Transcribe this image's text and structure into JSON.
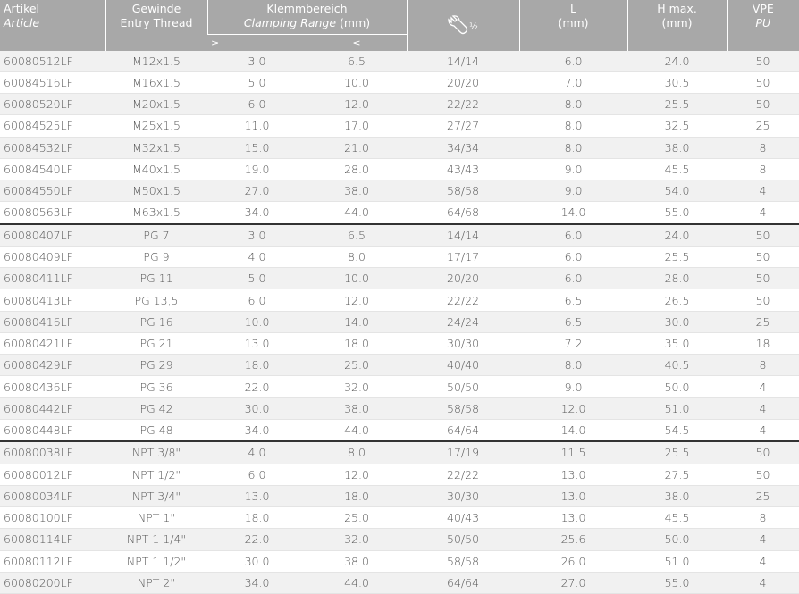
{
  "header": {
    "article": {
      "de": "Artikel",
      "en": "Article"
    },
    "thread": {
      "de": "Gewinde",
      "en": "Entry Thread"
    },
    "clamping": {
      "de": "Klemmbereich",
      "en": "Clamping Range",
      "unit": "(mm)",
      "min": "≥",
      "max": "≤"
    },
    "wrench": "½",
    "length": {
      "de": "L",
      "unit": "(mm)"
    },
    "height": {
      "de": "H max.",
      "unit": "(mm)"
    },
    "pu": {
      "de": "VPE",
      "en": "PU"
    }
  },
  "table": {
    "groups": [
      [
        [
          "60080512LF",
          "M12x1.5",
          "3.0",
          "6.5",
          "14/14",
          "6.0",
          "24.0",
          "50"
        ],
        [
          "60084516LF",
          "M16x1.5",
          "5.0",
          "10.0",
          "20/20",
          "7.0",
          "30.5",
          "50"
        ],
        [
          "60080520LF",
          "M20x1.5",
          "6.0",
          "12.0",
          "22/22",
          "8.0",
          "25.5",
          "50"
        ],
        [
          "60084525LF",
          "M25x1.5",
          "11.0",
          "17.0",
          "27/27",
          "8.0",
          "32.5",
          "25"
        ],
        [
          "60084532LF",
          "M32x1.5",
          "15.0",
          "21.0",
          "34/34",
          "8.0",
          "38.0",
          "8"
        ],
        [
          "60084540LF",
          "M40x1.5",
          "19.0",
          "28.0",
          "43/43",
          "9.0",
          "45.5",
          "8"
        ],
        [
          "60084550LF",
          "M50x1.5",
          "27.0",
          "38.0",
          "58/58",
          "9.0",
          "54.0",
          "4"
        ],
        [
          "60080563LF",
          "M63x1.5",
          "34.0",
          "44.0",
          "64/68",
          "14.0",
          "55.0",
          "4"
        ]
      ],
      [
        [
          "60080407LF",
          "PG 7",
          "3.0",
          "6.5",
          "14/14",
          "6.0",
          "24.0",
          "50"
        ],
        [
          "60080409LF",
          "PG 9",
          "4.0",
          "8.0",
          "17/17",
          "6.0",
          "25.5",
          "50"
        ],
        [
          "60080411LF",
          "PG 11",
          "5.0",
          "10.0",
          "20/20",
          "6.0",
          "28.0",
          "50"
        ],
        [
          "60080413LF",
          "PG 13,5",
          "6.0",
          "12.0",
          "22/22",
          "6.5",
          "26.5",
          "50"
        ],
        [
          "60080416LF",
          "PG 16",
          "10.0",
          "14.0",
          "24/24",
          "6.5",
          "30.0",
          "25"
        ],
        [
          "60080421LF",
          "PG 21",
          "13.0",
          "18.0",
          "30/30",
          "7.2",
          "35.0",
          "18"
        ],
        [
          "60080429LF",
          "PG 29",
          "18.0",
          "25.0",
          "40/40",
          "8.0",
          "40.5",
          "8"
        ],
        [
          "60080436LF",
          "PG 36",
          "22.0",
          "32.0",
          "50/50",
          "9.0",
          "50.0",
          "4"
        ],
        [
          "60080442LF",
          "PG 42",
          "30.0",
          "38.0",
          "58/58",
          "12.0",
          "51.0",
          "4"
        ],
        [
          "60080448LF",
          "PG 48",
          "34.0",
          "44.0",
          "64/64",
          "14.0",
          "54.5",
          "4"
        ]
      ],
      [
        [
          "60080038LF",
          "NPT 3/8\"",
          "4.0",
          "8.0",
          "17/19",
          "11.5",
          "25.5",
          "50"
        ],
        [
          "60080012LF",
          "NPT 1/2\"",
          "6.0",
          "12.0",
          "22/22",
          "13.0",
          "27.5",
          "50"
        ],
        [
          "60080034LF",
          "NPT 3/4\"",
          "13.0",
          "18.0",
          "30/30",
          "13.0",
          "38.0",
          "25"
        ],
        [
          "60080100LF",
          "NPT 1\"",
          "18.0",
          "25.0",
          "40/43",
          "13.0",
          "45.5",
          "8"
        ],
        [
          "60080114LF",
          "NPT 1 1/4\"",
          "22.0",
          "32.0",
          "50/50",
          "25.6",
          "50.0",
          "4"
        ],
        [
          "60080112LF",
          "NPT 1 1/2\"",
          "30.0",
          "38.0",
          "58/58",
          "26.0",
          "51.0",
          "4"
        ],
        [
          "60080200LF",
          "NPT 2\"",
          "34.0",
          "44.0",
          "64/64",
          "27.0",
          "55.0",
          "4"
        ]
      ]
    ]
  }
}
